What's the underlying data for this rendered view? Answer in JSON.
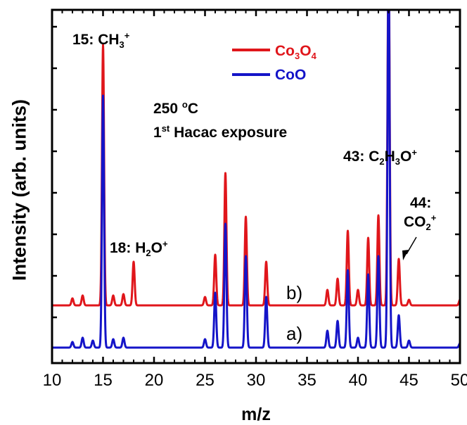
{
  "chart_data": {
    "type": "line",
    "xlabel": "m/z",
    "ylabel": "Intensity (arb. units)",
    "xlim": [
      10,
      50
    ],
    "x_ticks": [
      10,
      15,
      20,
      25,
      30,
      35,
      40,
      45,
      50
    ],
    "legend": {
      "placement": "top-center",
      "entries": [
        {
          "color": "#e0161b",
          "parts": [
            "Co",
            "3",
            "O",
            "4"
          ]
        },
        {
          "color": "#1414c8",
          "label": "CoO"
        }
      ]
    },
    "annotation_lines": [
      "250 °C",
      "1st Hacac exposure"
    ],
    "trace_labels": {
      "b": "b)",
      "a": "a)"
    },
    "peak_labels": {
      "m15": "15: CH3+",
      "m18": "18: H2O+",
      "m43": "43: C2H3O+",
      "m44": "44: CO2+"
    },
    "series": [
      {
        "name": "b) Co3O4",
        "color": "#e0161b",
        "baseline_offset": 0.3,
        "peaks": [
          {
            "x": 12,
            "height": 0.05
          },
          {
            "x": 13,
            "height": 0.07
          },
          {
            "x": 15,
            "height": 1.85
          },
          {
            "x": 16,
            "height": 0.07
          },
          {
            "x": 17,
            "height": 0.08
          },
          {
            "x": 18,
            "height": 0.31
          },
          {
            "x": 25,
            "height": 0.06
          },
          {
            "x": 26,
            "height": 0.36
          },
          {
            "x": 27,
            "height": 0.94
          },
          {
            "x": 29,
            "height": 0.63
          },
          {
            "x": 31,
            "height": 0.31
          },
          {
            "x": 37,
            "height": 0.11
          },
          {
            "x": 38,
            "height": 0.19
          },
          {
            "x": 39,
            "height": 0.53
          },
          {
            "x": 40,
            "height": 0.11
          },
          {
            "x": 41,
            "height": 0.48
          },
          {
            "x": 42,
            "height": 0.64
          },
          {
            "x": 43,
            "height": 2.6
          },
          {
            "x": 44,
            "height": 0.33
          },
          {
            "x": 45,
            "height": 0.04
          },
          {
            "x": 50,
            "height": 0.04
          }
        ]
      },
      {
        "name": "a) CoO",
        "color": "#1414c8",
        "baseline_offset": 0.0,
        "peaks": [
          {
            "x": 12,
            "height": 0.04
          },
          {
            "x": 13,
            "height": 0.07
          },
          {
            "x": 14,
            "height": 0.05
          },
          {
            "x": 15,
            "height": 1.79
          },
          {
            "x": 16,
            "height": 0.06
          },
          {
            "x": 17,
            "height": 0.07
          },
          {
            "x": 25,
            "height": 0.06
          },
          {
            "x": 26,
            "height": 0.39
          },
          {
            "x": 27,
            "height": 0.88
          },
          {
            "x": 29,
            "height": 0.65
          },
          {
            "x": 31,
            "height": 0.36
          },
          {
            "x": 37,
            "height": 0.12
          },
          {
            "x": 38,
            "height": 0.19
          },
          {
            "x": 39,
            "height": 0.55
          },
          {
            "x": 40,
            "height": 0.07
          },
          {
            "x": 41,
            "height": 0.52
          },
          {
            "x": 42,
            "height": 0.65
          },
          {
            "x": 43,
            "height": 2.8
          },
          {
            "x": 44,
            "height": 0.23
          },
          {
            "x": 45,
            "height": 0.05
          },
          {
            "x": 50,
            "height": 0.03
          }
        ]
      }
    ]
  }
}
